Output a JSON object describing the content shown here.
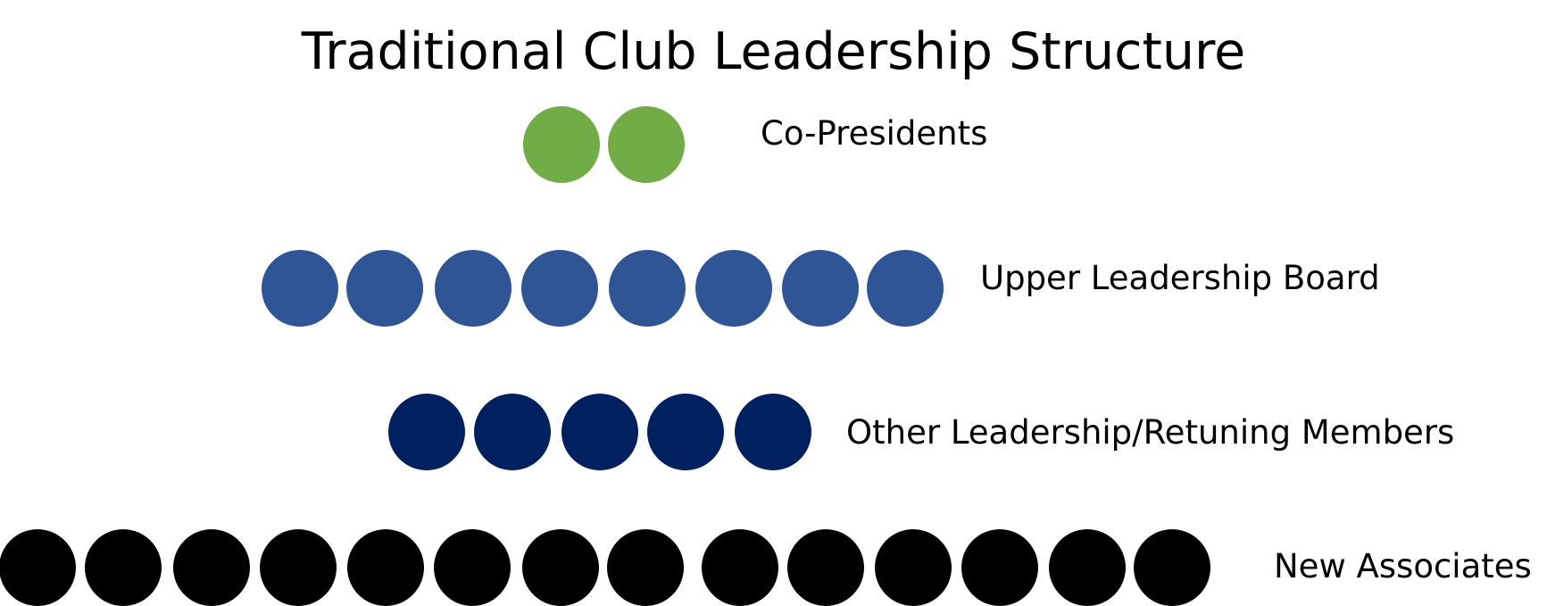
{
  "title": "Traditional Club Leadership Structure",
  "tiers": [
    {
      "label": "Co-Presidents",
      "count": 2,
      "color": "#71ac47"
    },
    {
      "label": "Upper Leadership Board",
      "count": 8,
      "color": "#2f5597"
    },
    {
      "label": "Other Leadership/Retuning Members",
      "count": 5,
      "color": "#002060"
    },
    {
      "label": "New Associates",
      "count": 14,
      "color": "#000000"
    }
  ]
}
